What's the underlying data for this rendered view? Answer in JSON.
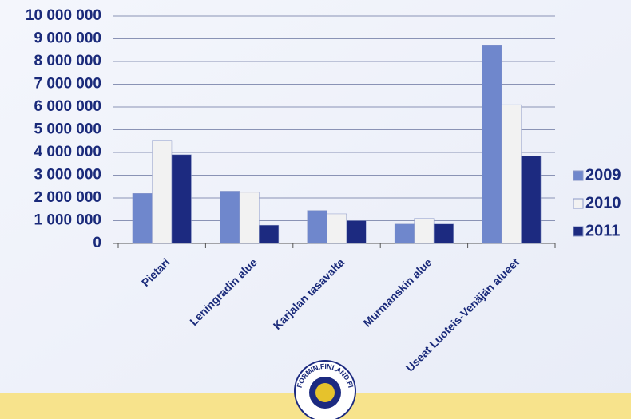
{
  "chart_data": {
    "type": "bar",
    "categories": [
      "Pietari",
      "Leningradin alue",
      "Karjalan tasavalta",
      "Murmanskin alue",
      "Useat Luoteis-Venäjän alueet"
    ],
    "series": [
      {
        "name": "2009",
        "color": "#6f87cc",
        "values": [
          2200000,
          2300000,
          1450000,
          850000,
          8700000
        ]
      },
      {
        "name": "2010",
        "color": "#f2f2f2",
        "values": [
          4500000,
          2250000,
          1300000,
          1100000,
          6100000
        ]
      },
      {
        "name": "2011",
        "color": "#1c2a80",
        "values": [
          3900000,
          800000,
          1000000,
          850000,
          3850000
        ]
      }
    ],
    "ylim": [
      0,
      10000000
    ],
    "yticks": [
      0,
      {
        "value": 1000000,
        "label": "1 000 000"
      },
      {
        "value": 2000000,
        "label": "2 000 000"
      },
      {
        "value": 3000000,
        "label": "3 000 000"
      },
      {
        "value": 4000000,
        "label": "4 000 000"
      },
      {
        "value": 5000000,
        "label": "5 000 000"
      },
      {
        "value": 6000000,
        "label": "6 000 000"
      },
      {
        "value": 7000000,
        "label": "7 000 000"
      },
      {
        "value": 8000000,
        "label": "8 000 000"
      },
      {
        "value": 9000000,
        "label": "9 000 000"
      },
      {
        "value": 10000000,
        "label": "10 000 000"
      }
    ],
    "grid": true,
    "legend": "right"
  },
  "footer": {
    "logo": "FORMIN.FINLAND.FI"
  }
}
